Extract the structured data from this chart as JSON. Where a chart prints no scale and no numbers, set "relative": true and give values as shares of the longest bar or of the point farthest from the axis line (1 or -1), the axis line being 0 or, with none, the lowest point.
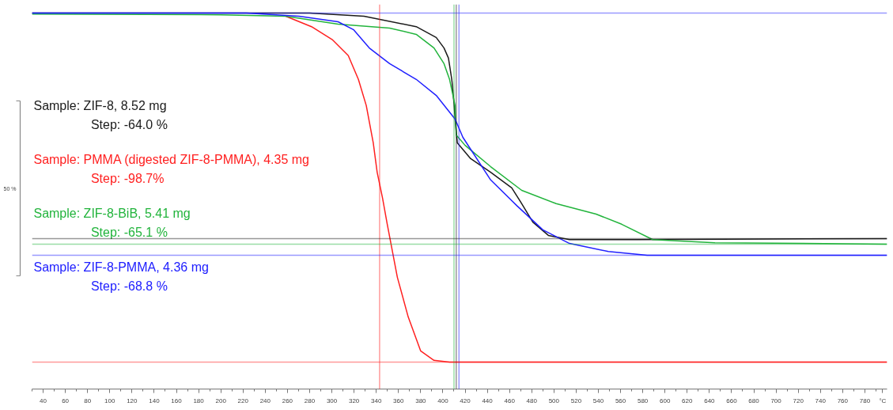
{
  "chart_data": {
    "type": "line",
    "relative": true,
    "legend": "left",
    "grid": false,
    "tick_labels": "x",
    "xlim": [
      30,
      800
    ],
    "xticks": [
      40,
      60,
      80,
      100,
      120,
      140,
      160,
      180,
      200,
      220,
      240,
      260,
      280,
      300,
      320,
      340,
      360,
      380,
      400,
      420,
      440,
      460,
      480,
      500,
      520,
      540,
      560,
      580,
      600,
      620,
      640,
      660,
      680,
      700,
      720,
      740,
      760,
      780,
      {
        "value": 796,
        "label": "°C"
      }
    ],
    "series": [
      {
        "name": "Sample: ZIF-8, 8.52 mg",
        "color": "#1a1a1a",
        "x": [
          30,
          280,
          329,
          376,
          394,
          401,
          405,
          408,
          410,
          411,
          413,
          425,
          443,
          462,
          471,
          481,
          495,
          514,
          575,
          800
        ],
        "values": [
          1.0,
          1.0,
          0.991,
          0.961,
          0.93,
          0.9,
          0.871,
          0.81,
          0.741,
          0.696,
          0.628,
          0.583,
          0.544,
          0.499,
          0.454,
          0.401,
          0.363,
          0.351,
          0.351,
          0.354
        ]
      },
      {
        "name": "Sample: PMMA (digested ZIF-8-PMMA), 4.35 mg",
        "color": "#ff2020",
        "x": [
          258.5,
          281.7,
          300.7,
          314.8,
          323.9,
          331,
          337.3,
          340.8,
          345.7,
          349.9,
          359,
          368.8,
          380,
          392,
          406,
          800
        ],
        "values": [
          0.991,
          0.961,
          0.923,
          0.878,
          0.81,
          0.735,
          0.628,
          0.544,
          0.469,
          0.395,
          0.243,
          0.129,
          0.032,
          0.005,
          0.0,
          0.0
        ]
      },
      {
        "name": "Sample: ZIF-8-BiB, 5.41 mg",
        "color": "#22b43c",
        "x": [
          30,
          200,
          258.5,
          305.6,
          352,
          376,
          392,
          401,
          406,
          411,
          412,
          420,
          443,
          471,
          502,
          538,
          561,
          589,
          645,
          800
        ],
        "values": [
          0.997,
          0.995,
          0.991,
          0.968,
          0.957,
          0.939,
          0.9,
          0.855,
          0.81,
          0.735,
          0.651,
          0.621,
          0.56,
          0.492,
          0.454,
          0.424,
          0.395,
          0.351,
          0.342,
          0.338
        ]
      },
      {
        "name": "Sample: ZIF-8-PMMA, 4.36 mg",
        "color": "#2020ff",
        "x": [
          30,
          223,
          270.5,
          305.6,
          319.7,
          333.7,
          352,
          376,
          394,
          411,
          418,
          443,
          467,
          490,
          514,
          549,
          584,
          800
        ],
        "values": [
          1.0,
          1.0,
          0.991,
          0.975,
          0.952,
          0.9,
          0.855,
          0.81,
          0.764,
          0.696,
          0.644,
          0.522,
          0.447,
          0.379,
          0.34,
          0.317,
          0.306,
          0.306
        ]
      }
    ],
    "annotations": [
      "Step: -64.0 %",
      "Step: -98.7%",
      "Step: -65.1 %",
      "Step: -68.8 %",
      "50 %"
    ],
    "ref_lines": [
      {
        "axis": "x",
        "value": 343,
        "color": "#ff2020"
      },
      {
        "axis": "x",
        "value": 410,
        "color": "#22b43c"
      },
      {
        "axis": "x",
        "value": 412,
        "color": "#1a1a1a"
      },
      {
        "axis": "x",
        "value": 414.5,
        "color": "#2020ff"
      },
      {
        "axis": "y",
        "value": 1.0,
        "color": "#2020ff"
      },
      {
        "axis": "y",
        "value": 0.354,
        "color": "#1a1a1a"
      },
      {
        "axis": "y",
        "value": 0.338,
        "color": "#22b43c"
      },
      {
        "axis": "y",
        "value": 0.306,
        "color": "#2020ff"
      },
      {
        "axis": "y",
        "value": 0.0,
        "color": "#ff2020"
      }
    ]
  }
}
